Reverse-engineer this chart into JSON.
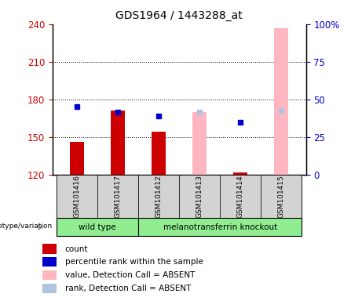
{
  "title": "GDS1964 / 1443288_at",
  "samples": [
    "GSM101416",
    "GSM101417",
    "GSM101412",
    "GSM101413",
    "GSM101414",
    "GSM101415"
  ],
  "ylim_left": [
    120,
    240
  ],
  "ylim_right": [
    0,
    100
  ],
  "yticks_left": [
    120,
    150,
    180,
    210,
    240
  ],
  "yticks_right": [
    0,
    25,
    50,
    75,
    100
  ],
  "bar_bottom": 120,
  "count_values": [
    146,
    171,
    154,
    null,
    122,
    null
  ],
  "rank_values": [
    174,
    170,
    167,
    null,
    162,
    null
  ],
  "absent_value_bars": [
    null,
    null,
    null,
    170,
    null,
    237
  ],
  "absent_rank_dots": [
    null,
    null,
    null,
    170,
    null,
    171
  ],
  "rank_color": "#0000cc",
  "count_color": "#cc0000",
  "absent_value_color": "#ffb6c1",
  "absent_rank_color": "#b0c4de",
  "genotype_label": "genotype/variation",
  "wild_type_label": "wild type",
  "knockout_label": "melanotransferrin knockout",
  "group_color": "#90ee90",
  "sample_bg_color": "#d3d3d3",
  "legend_items": [
    {
      "label": "count",
      "color": "#cc0000"
    },
    {
      "label": "percentile rank within the sample",
      "color": "#0000cc"
    },
    {
      "label": "value, Detection Call = ABSENT",
      "color": "#ffb6c1"
    },
    {
      "label": "rank, Detection Call = ABSENT",
      "color": "#b0c4de"
    }
  ]
}
